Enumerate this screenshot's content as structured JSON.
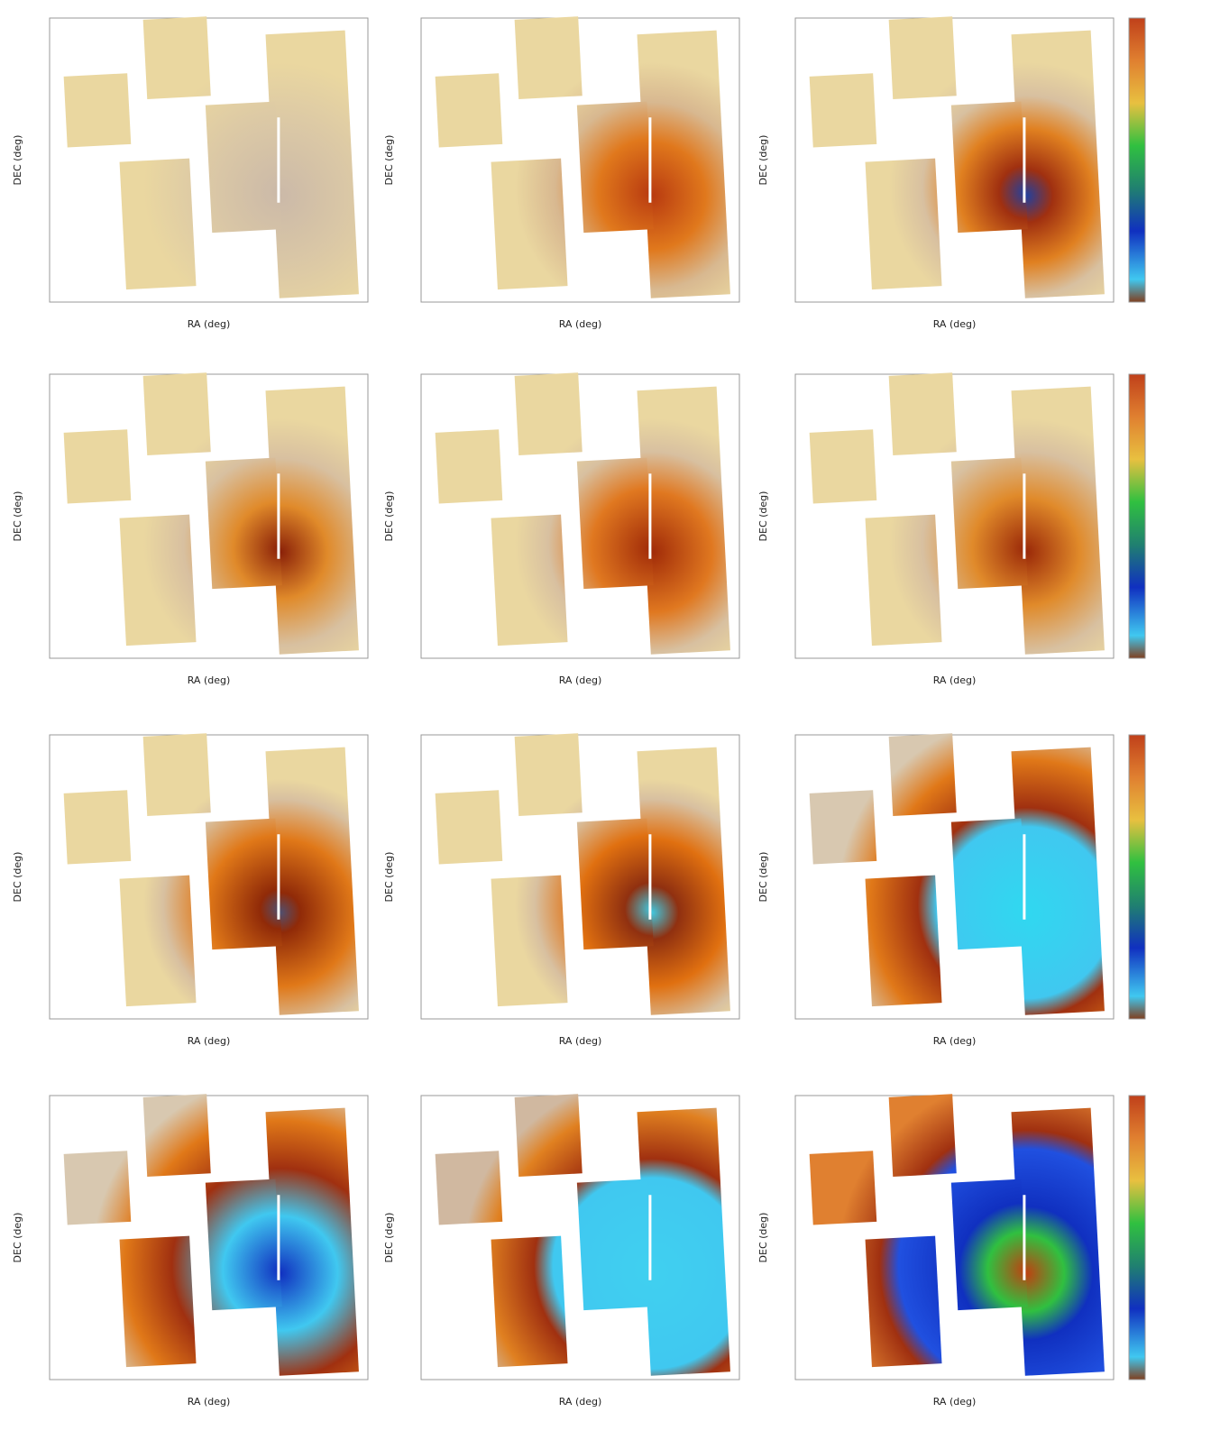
{
  "chart_data": [
    {
      "type": "image",
      "xlabel": "RA (deg)",
      "ylabel": "DEC (deg)"
    },
    {
      "type": "image",
      "xlabel": "RA (deg)",
      "ylabel": "DEC (deg)"
    },
    {
      "type": "image",
      "xlabel": "RA (deg)",
      "ylabel": "DEC (deg)"
    },
    {
      "type": "image",
      "xlabel": "RA (deg)",
      "ylabel": "DEC (deg)"
    },
    {
      "type": "image",
      "xlabel": "RA (deg)",
      "ylabel": "DEC (deg)"
    },
    {
      "type": "image",
      "xlabel": "RA (deg)",
      "ylabel": "DEC (deg)"
    },
    {
      "type": "image",
      "xlabel": "RA (deg)",
      "ylabel": "DEC (deg)"
    },
    {
      "type": "image",
      "xlabel": "RA (deg)",
      "ylabel": "DEC (deg)"
    },
    {
      "type": "image",
      "xlabel": "RA (deg)",
      "ylabel": "DEC (deg)"
    },
    {
      "type": "image",
      "xlabel": "RA (deg)",
      "ylabel": "DEC (deg)"
    },
    {
      "type": "image",
      "xlabel": "RA (deg)",
      "ylabel": "DEC (deg)"
    },
    {
      "type": "image",
      "xlabel": "RA (deg)",
      "ylabel": "DEC (deg)"
    }
  ]
}
